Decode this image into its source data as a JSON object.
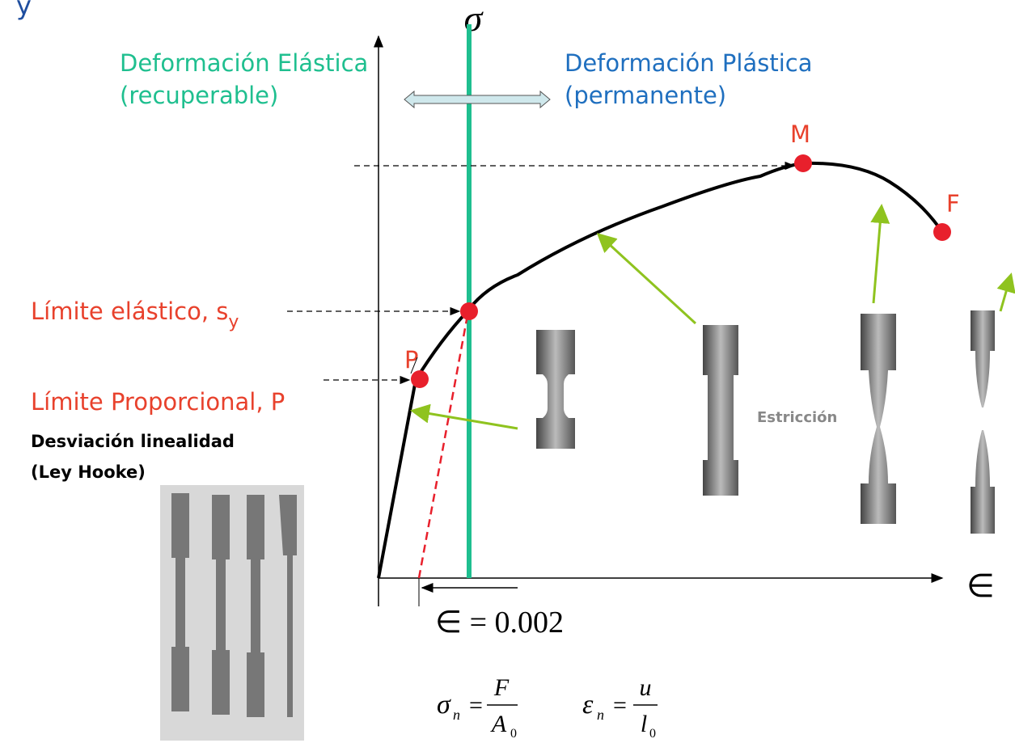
{
  "header": {
    "title": "y"
  },
  "axes": {
    "y_label": "σ",
    "x_label": "∈"
  },
  "regions": {
    "elastic": {
      "title": "Deformación Elástica",
      "note": "(recuperable)"
    },
    "plastic": {
      "title": "Deformación Plástica",
      "note": "(permanente)"
    }
  },
  "points": {
    "max": "M",
    "fracture": "F",
    "proportional": "P"
  },
  "labels": {
    "yield": {
      "text": "Límite elástico, s",
      "sub": "y"
    },
    "proportional": "Límite Proporcional, P",
    "deviation": "Desviación linealidad",
    "hooke": "(Ley Hooke)",
    "necking": "Estricción",
    "offset": "∈ = 0.002"
  },
  "formulas": [
    {
      "symbol": "σ",
      "sub": "n",
      "equals": "=",
      "num": "F",
      "den": "A",
      "den_sub": "0"
    },
    {
      "symbol": "ε",
      "sub": "n",
      "equals": "=",
      "num": "u",
      "den": "l",
      "den_sub": "0"
    }
  ]
}
